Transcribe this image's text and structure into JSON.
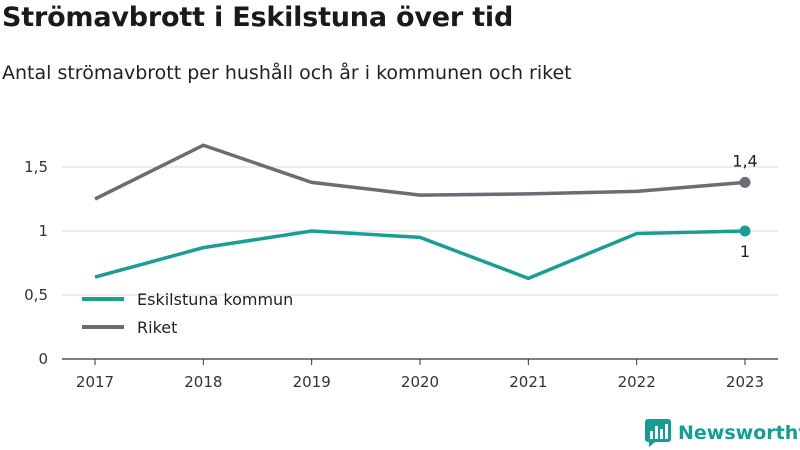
{
  "title": "Strömavbrott i Eskilstuna över tid",
  "subtitle": "Antal strömavbrott per hushåll och år i kommunen och riket",
  "brand": "Newsworthy",
  "colors": {
    "kommun": "#1a9e94",
    "riket": "#6c6c74",
    "grid": "#d9d9d9",
    "brand": "#139e93"
  },
  "chart_data": {
    "type": "line",
    "categories": [
      "2017",
      "2018",
      "2019",
      "2020",
      "2021",
      "2022",
      "2023"
    ],
    "ylim": [
      0,
      1.8
    ],
    "yticks": [
      0,
      0.5,
      1,
      1.5
    ],
    "ytick_labels": [
      "0",
      "0,5",
      "1",
      "1,5"
    ],
    "grid": true,
    "legend_position": "lower-left",
    "series": [
      {
        "name": "Eskilstuna kommun",
        "color": "#1a9e94",
        "values": [
          0.64,
          0.87,
          1.0,
          0.95,
          0.63,
          0.98,
          1.0
        ],
        "end_label": "1"
      },
      {
        "name": "Riket",
        "color": "#6c6c74",
        "values": [
          1.25,
          1.67,
          1.38,
          1.28,
          1.29,
          1.31,
          1.38
        ],
        "end_label": "1,4"
      }
    ]
  }
}
